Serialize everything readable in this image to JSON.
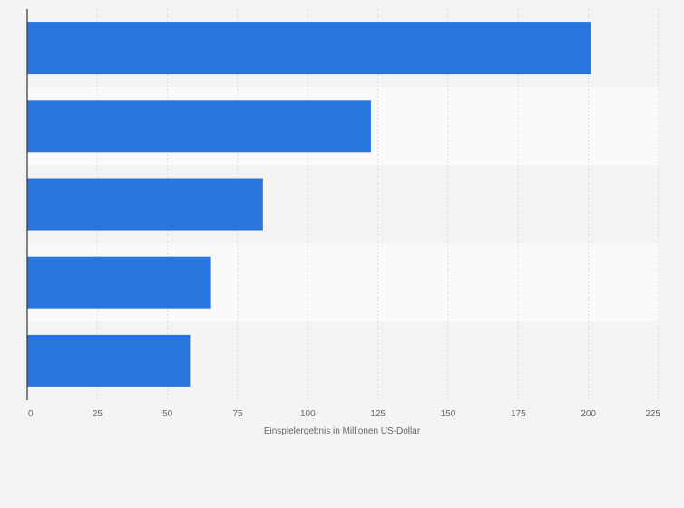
{
  "chart_data": {
    "type": "bar",
    "orientation": "horizontal",
    "title": "",
    "xlabel": "Einspielergebnis in Millionen US-Dollar",
    "ylabel": "",
    "xlim": [
      0,
      225
    ],
    "xticks": [
      0,
      25,
      50,
      75,
      100,
      125,
      150,
      175,
      200,
      225
    ],
    "grid": true,
    "legend": "none",
    "categories": [
      "",
      "",
      "",
      "",
      ""
    ],
    "values": [
      201,
      122.5,
      84,
      65.5,
      58
    ],
    "bar_color": "#2876dd",
    "band_colors": [
      "#f4f4f4",
      "#fafafa"
    ],
    "gridline_color": "#dddddd",
    "axis_color": "#333333"
  }
}
